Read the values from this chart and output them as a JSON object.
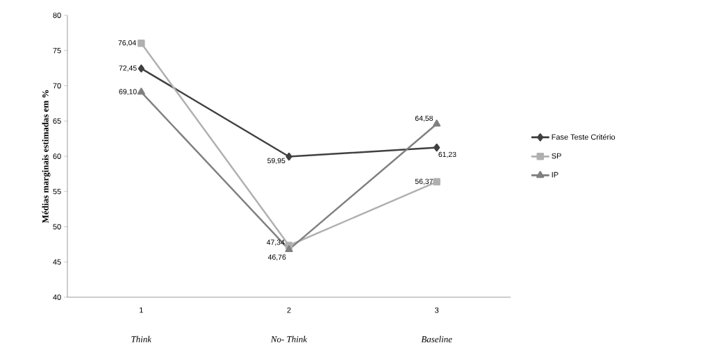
{
  "chart_data": {
    "type": "line",
    "ylabel": "Médias marginais estimadas em %",
    "categories": [
      "1",
      "2",
      "3"
    ],
    "annotations": [
      "*Think*",
      "*No- Think*",
      "*Baseline*"
    ],
    "series": [
      {
        "name": "Fase Teste Critério",
        "color": "#404040",
        "marker": "diamond",
        "values": [
          72.45,
          59.95,
          61.23
        ],
        "value_labels": [
          "72,45",
          "59,95",
          "61,23"
        ]
      },
      {
        "name": "SP",
        "color": "#b0b0b0",
        "marker": "square",
        "values": [
          76.04,
          47.34,
          56.37
        ],
        "value_labels": [
          "76,04",
          "47,34",
          "56,37"
        ]
      },
      {
        "name": "IP",
        "color": "#808080",
        "marker": "triangle",
        "values": [
          69.1,
          46.76,
          64.58
        ],
        "value_labels": [
          "69,10",
          "46,76",
          "64,58"
        ]
      }
    ],
    "ylim": [
      40,
      80
    ],
    "yticks": [
      40,
      45,
      50,
      55,
      60,
      65,
      70,
      75,
      80
    ],
    "legend": "right",
    "grid": false
  }
}
